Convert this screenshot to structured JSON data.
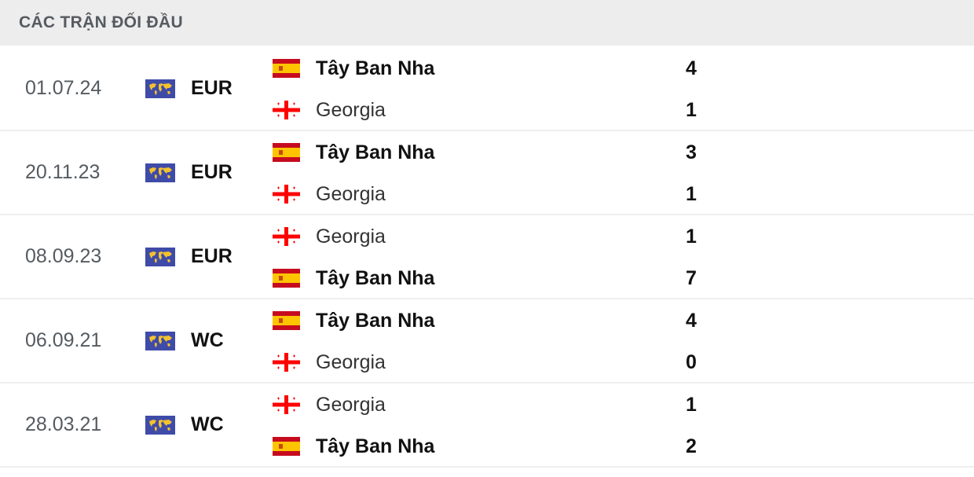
{
  "header": {
    "title": "CÁC TRẬN ĐỐI ĐẦU"
  },
  "matches": [
    {
      "date": "01.07.24",
      "league": "EUR",
      "teams": [
        {
          "name": "Tây Ban Nha",
          "flag": "spain",
          "score": "4",
          "win": true
        },
        {
          "name": "Georgia",
          "flag": "georgia",
          "score": "1",
          "win": false
        }
      ]
    },
    {
      "date": "20.11.23",
      "league": "EUR",
      "teams": [
        {
          "name": "Tây Ban Nha",
          "flag": "spain",
          "score": "3",
          "win": true
        },
        {
          "name": "Georgia",
          "flag": "georgia",
          "score": "1",
          "win": false
        }
      ]
    },
    {
      "date": "08.09.23",
      "league": "EUR",
      "teams": [
        {
          "name": "Georgia",
          "flag": "georgia",
          "score": "1",
          "win": false
        },
        {
          "name": "Tây Ban Nha",
          "flag": "spain",
          "score": "7",
          "win": true
        }
      ]
    },
    {
      "date": "06.09.21",
      "league": "WC",
      "teams": [
        {
          "name": "Tây Ban Nha",
          "flag": "spain",
          "score": "4",
          "win": true
        },
        {
          "name": "Georgia",
          "flag": "georgia",
          "score": "0",
          "win": false
        }
      ]
    },
    {
      "date": "28.03.21",
      "league": "WC",
      "teams": [
        {
          "name": "Georgia",
          "flag": "georgia",
          "score": "1",
          "win": false
        },
        {
          "name": "Tây Ban Nha",
          "flag": "spain",
          "score": "2",
          "win": true
        }
      ]
    }
  ],
  "colors": {
    "league_icon_bg": "#3f4ba8",
    "league_icon_map": "#f2c12e",
    "spain_red": "#c60b1e",
    "spain_yellow": "#ffc400",
    "georgia_red": "#ff0000"
  }
}
